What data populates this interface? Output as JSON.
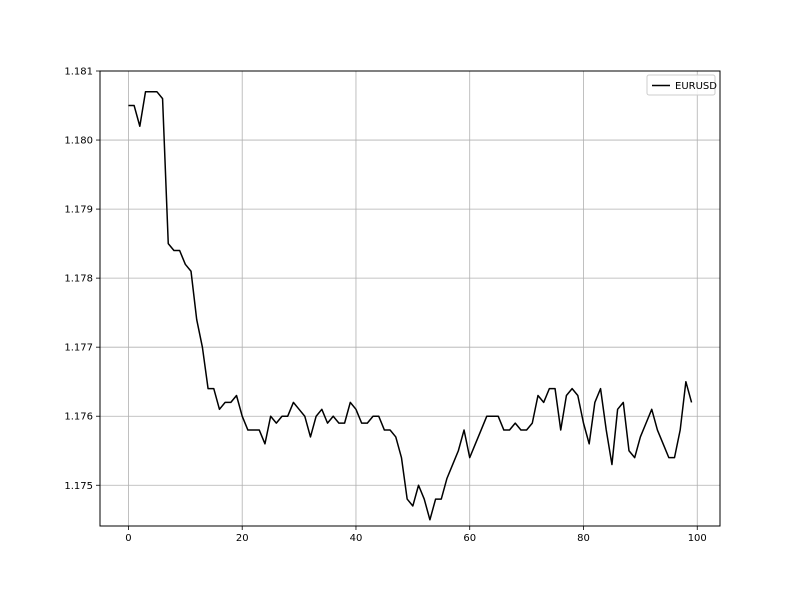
{
  "chart_data": {
    "type": "line",
    "title": "",
    "xlabel": "",
    "ylabel": "",
    "xlim": [
      -5,
      104
    ],
    "ylim": [
      1.17441,
      1.181
    ],
    "xticks": [
      0,
      20,
      40,
      60,
      80,
      100
    ],
    "yticks": [
      1.175,
      1.176,
      1.177,
      1.178,
      1.179,
      1.18,
      1.181
    ],
    "xtick_labels": [
      "0",
      "20",
      "40",
      "60",
      "80",
      "100"
    ],
    "ytick_labels": [
      "1.175",
      "1.176",
      "1.177",
      "1.178",
      "1.179",
      "1.180",
      "1.181"
    ],
    "grid": true,
    "legend": {
      "position": "top-right"
    },
    "series": [
      {
        "name": "EURUSD",
        "color": "#000000",
        "x": [
          0,
          1,
          2,
          3,
          4,
          5,
          6,
          7,
          8,
          9,
          10,
          11,
          12,
          13,
          14,
          15,
          16,
          17,
          18,
          19,
          20,
          21,
          22,
          23,
          24,
          25,
          26,
          27,
          28,
          29,
          30,
          31,
          32,
          33,
          34,
          35,
          36,
          37,
          38,
          39,
          40,
          41,
          42,
          43,
          44,
          45,
          46,
          47,
          48,
          49,
          50,
          51,
          52,
          53,
          54,
          55,
          56,
          57,
          58,
          59,
          60,
          61,
          62,
          63,
          64,
          65,
          66,
          67,
          68,
          69,
          70,
          71,
          72,
          73,
          74,
          75,
          76,
          77,
          78,
          79,
          80,
          81,
          82,
          83,
          84,
          85,
          86,
          87,
          88,
          89,
          90,
          91,
          92,
          93,
          94,
          95,
          96,
          97,
          98,
          99
        ],
        "values": [
          1.1805,
          1.1805,
          1.1802,
          1.1807,
          1.1807,
          1.1807,
          1.1806,
          1.1785,
          1.1784,
          1.1784,
          1.1782,
          1.1781,
          1.1774,
          1.177,
          1.1764,
          1.1764,
          1.1761,
          1.1762,
          1.1762,
          1.1763,
          1.176,
          1.1758,
          1.1758,
          1.1758,
          1.1756,
          1.176,
          1.1759,
          1.176,
          1.176,
          1.1762,
          1.1761,
          1.176,
          1.1757,
          1.176,
          1.1761,
          1.1759,
          1.176,
          1.1759,
          1.1759,
          1.1762,
          1.1761,
          1.1759,
          1.1759,
          1.176,
          1.176,
          1.1758,
          1.1758,
          1.1757,
          1.1754,
          1.1748,
          1.1747,
          1.175,
          1.1748,
          1.1745,
          1.1748,
          1.1748,
          1.1751,
          1.1753,
          1.1755,
          1.1758,
          1.1754,
          1.1756,
          1.1758,
          1.176,
          1.176,
          1.176,
          1.1758,
          1.1758,
          1.1759,
          1.1758,
          1.1758,
          1.1759,
          1.1763,
          1.1762,
          1.1764,
          1.1764,
          1.1758,
          1.1763,
          1.1764,
          1.1763,
          1.1759,
          1.1756,
          1.1762,
          1.1764,
          1.1758,
          1.1753,
          1.1761,
          1.1762,
          1.1755,
          1.1754,
          1.1757,
          1.1759,
          1.1761,
          1.1758,
          1.1756,
          1.1754,
          1.1754,
          1.1758,
          1.1765,
          1.1762
        ]
      }
    ]
  }
}
